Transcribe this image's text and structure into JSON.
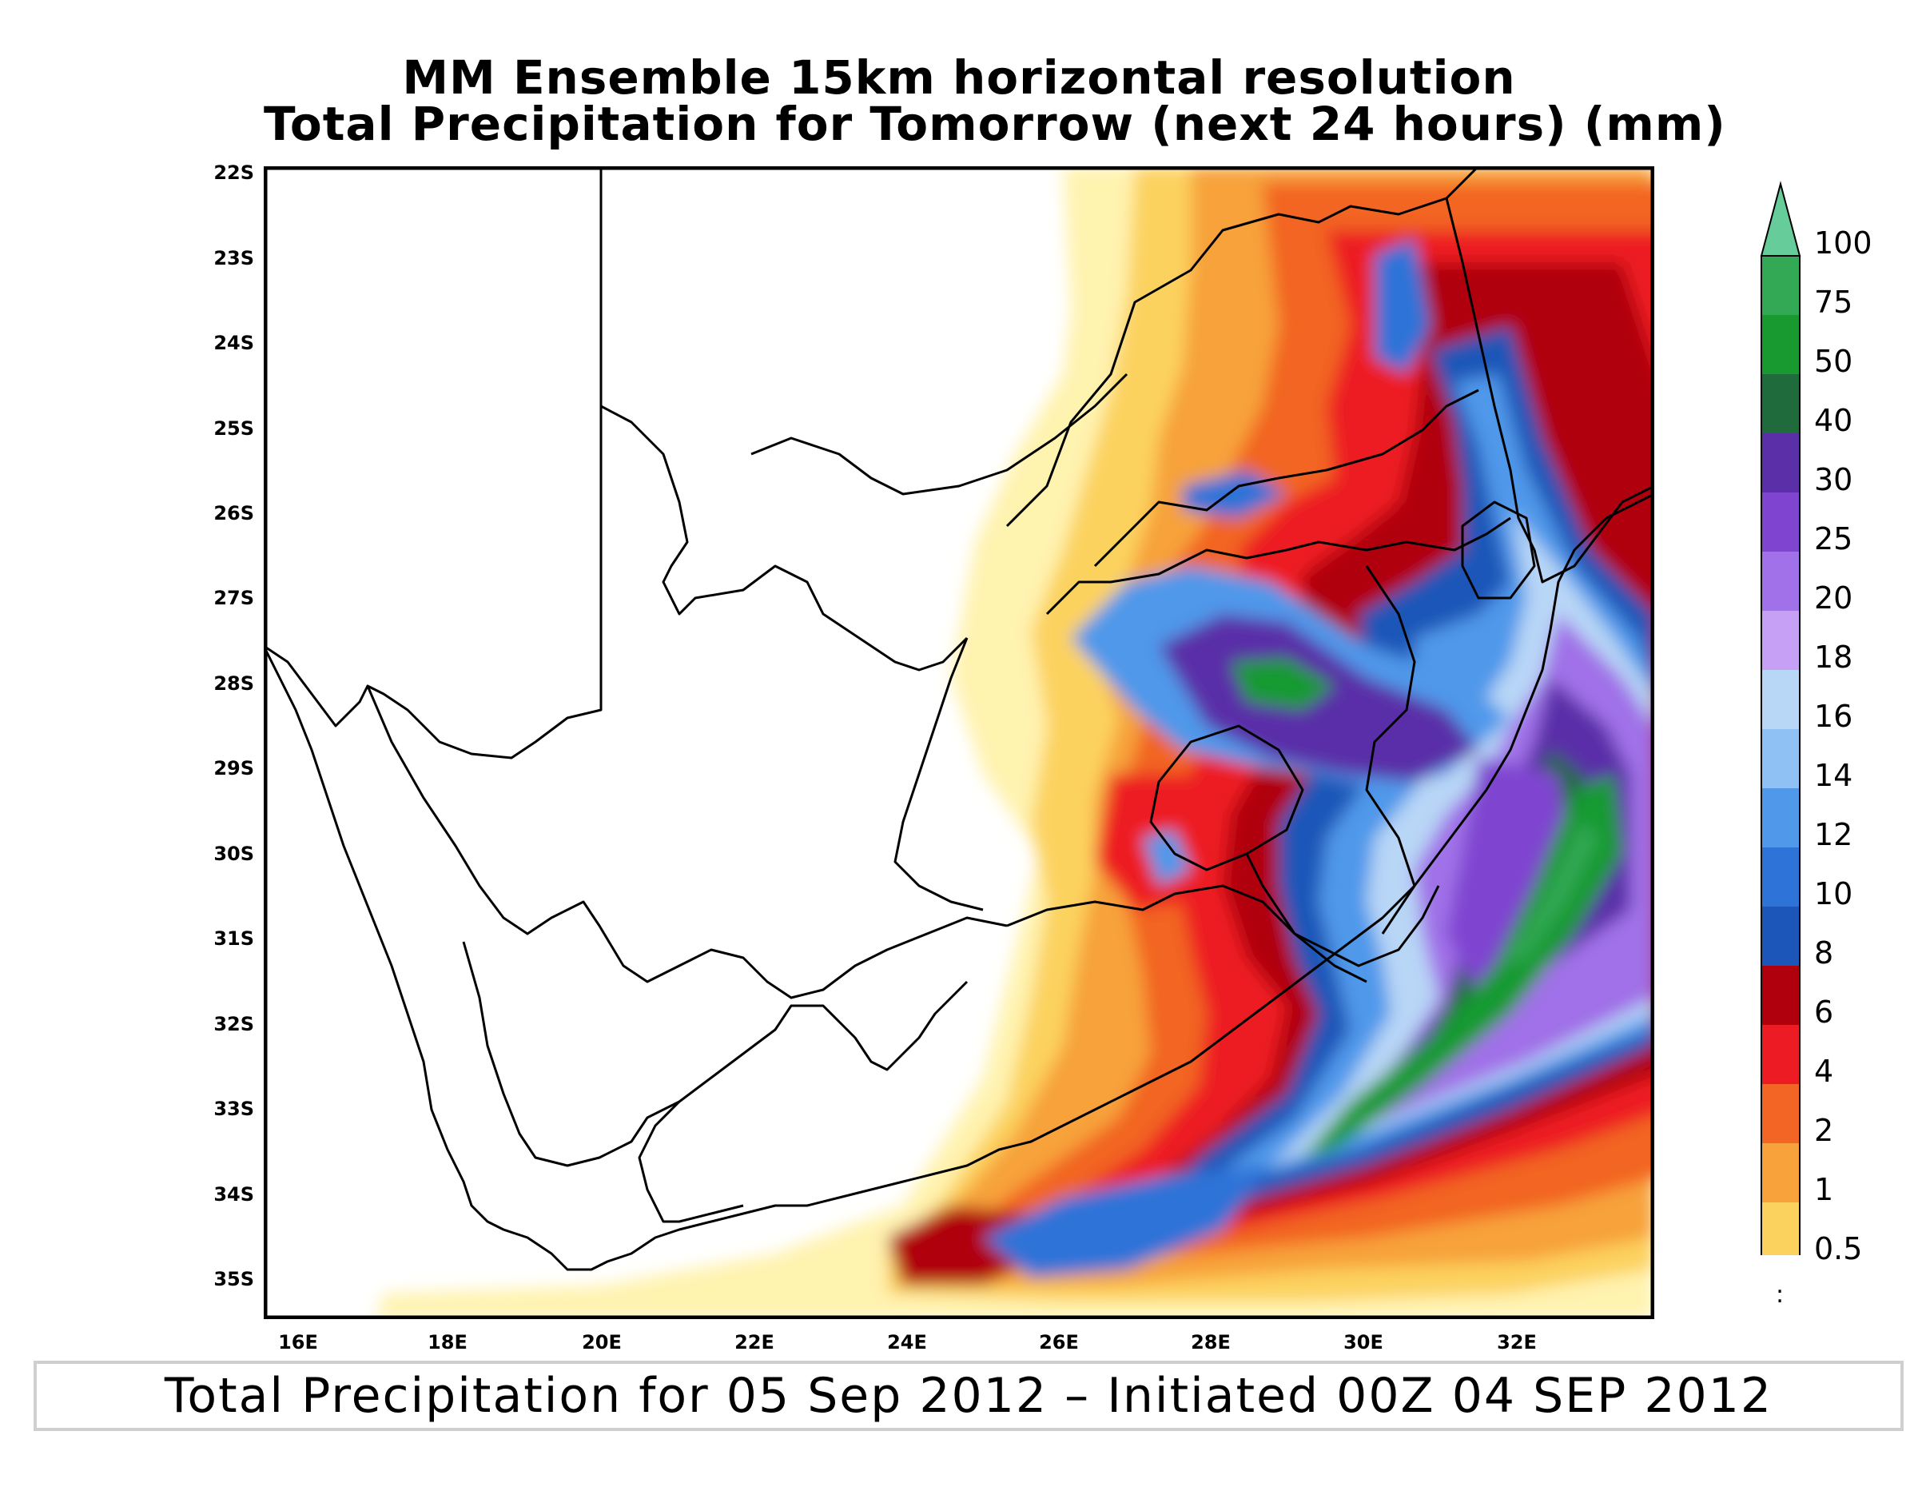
{
  "title": {
    "line1": "MM Ensemble 15km horizontal resolution",
    "line2": "Total Precipitation for Tomorrow (next 24 hours) (mm)"
  },
  "latitude_labels": [
    "22S",
    "23S",
    "24S",
    "25S",
    "26S",
    "27S",
    "28S",
    "29S",
    "30S",
    "31S",
    "32S",
    "33S",
    "34S",
    "35S"
  ],
  "longitude_labels": [
    "16E",
    "18E",
    "20E",
    "22E",
    "24E",
    "26E",
    "28E",
    "30E",
    "32E"
  ],
  "colorbar": {
    "labels": [
      "100",
      "75",
      "50",
      "40",
      "30",
      "25",
      "20",
      "18",
      "16",
      "14",
      "12",
      "10",
      "8",
      "6",
      "4",
      "2",
      "1",
      "0.5"
    ],
    "colors": [
      "#66cc99",
      "#33a855",
      "#189a30",
      "#1f6b3c",
      "#5a2fa8",
      "#7f44d0",
      "#a071e8",
      "#c6a0f4",
      "#b8d6f6",
      "#8fc1f5",
      "#4f98ea",
      "#2e73d8",
      "#1c56b8",
      "#b0000e",
      "#ed1c24",
      "#f26524",
      "#f7a23b",
      "#fcd25e",
      "#fff3b0"
    ]
  },
  "footer": "Total Precipitation for 05 Sep 2012 – Initiated 00Z 04 SEP 2012",
  "marks": {
    "dot": ":"
  }
}
